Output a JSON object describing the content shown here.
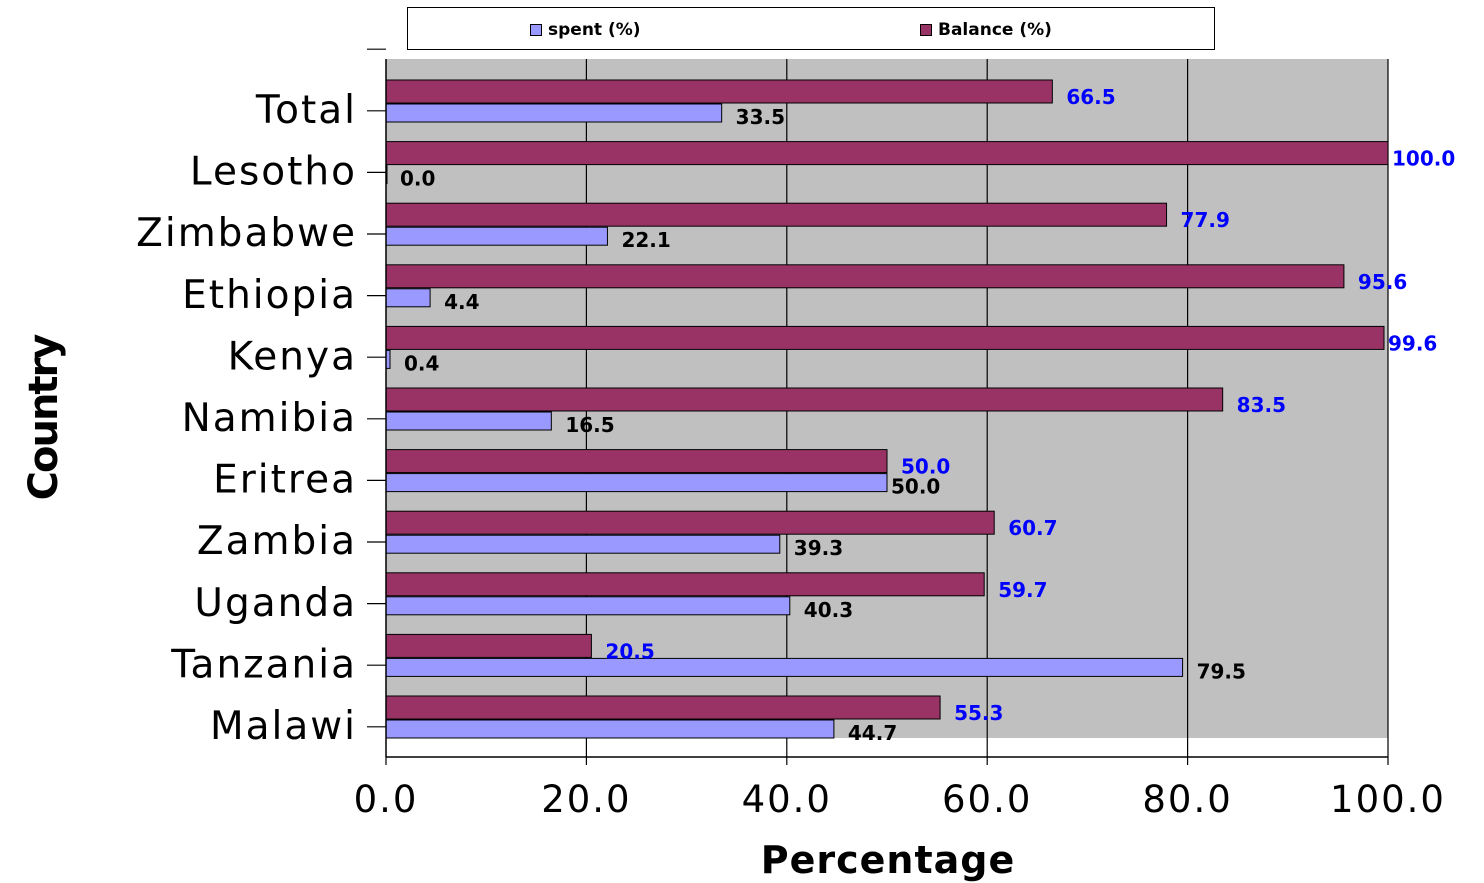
{
  "chart_data": {
    "type": "bar",
    "orientation": "horizontal",
    "categories": [
      "Total",
      "Lesotho",
      "Zimbabwe",
      "Ethiopia",
      "Kenya",
      "Namibia",
      "Eritrea",
      "Zambia",
      "Uganda",
      "Tanzania",
      "Malawi"
    ],
    "series": [
      {
        "name": "spent (%)",
        "color": "#9999ff",
        "label_color": "#000000",
        "values": [
          33.5,
          0.0,
          22.1,
          4.4,
          0.4,
          16.5,
          50.0,
          39.3,
          40.3,
          79.5,
          44.7
        ]
      },
      {
        "name": "Balance (%)",
        "color": "#993366",
        "label_color": "#0000ff",
        "values": [
          66.5,
          100.0,
          77.9,
          95.6,
          99.6,
          83.5,
          50.0,
          60.7,
          59.7,
          20.5,
          55.3
        ]
      }
    ],
    "data_labels": {
      "spent": [
        "33.5",
        "0.0",
        "22.1",
        "4.4",
        "0.4",
        "16.5",
        "50.0",
        "39.3",
        "40.3",
        "79.5",
        "44.7"
      ],
      "balance": [
        "66.5",
        "100.0",
        "77.9",
        "95.6",
        "99.6",
        "83.5",
        "50.0",
        "60.7",
        "59.7",
        "20.5",
        "55.3"
      ]
    },
    "xlabel": "Percentage",
    "ylabel": "Country",
    "xlim": [
      0,
      100
    ],
    "xticks": [
      0,
      20,
      40,
      60,
      80,
      100
    ],
    "xtick_labels": [
      "0.0",
      "20.0",
      "40.0",
      "60.0",
      "80.0",
      "100.0"
    ],
    "grid": "vertical",
    "plot_background": "#c0c0c0",
    "legend_position": "top"
  }
}
